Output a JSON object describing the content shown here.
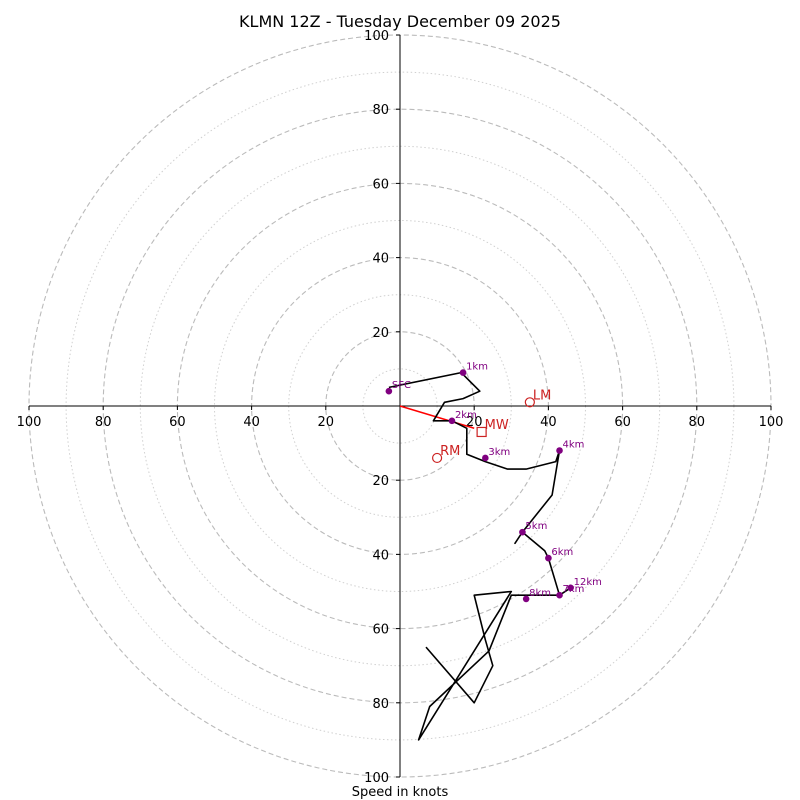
{
  "chart_data": {
    "type": "line",
    "title": "KLMN 12Z - Tuesday December 09 2025",
    "xlabel": "Speed in knots",
    "ylabel": "",
    "xlim": [
      -100,
      100
    ],
    "ylim": [
      -100,
      100
    ],
    "rings": {
      "dashed": [
        20,
        40,
        60,
        80,
        100
      ],
      "dotted": [
        10,
        30,
        50,
        70,
        90
      ]
    },
    "x_tick_labels": [
      "100",
      "80",
      "60",
      "40",
      "20",
      "20",
      "40",
      "60",
      "80",
      "100"
    ],
    "y_tick_labels": [
      "100",
      "80",
      "60",
      "40",
      "20",
      "20",
      "40",
      "60",
      "80",
      "100"
    ],
    "hodograph": {
      "name": "wind profile",
      "x": [
        -3,
        16.5,
        21.5,
        17,
        12,
        9,
        14,
        18,
        18,
        23,
        29,
        34,
        42,
        43,
        41,
        33,
        31,
        33,
        39,
        40,
        43,
        46,
        43,
        30,
        24,
        8,
        5,
        30,
        20,
        23,
        25,
        20,
        7
      ],
      "y": [
        5,
        9,
        4,
        2,
        1,
        -4,
        -4,
        -6,
        -13,
        -15,
        -17,
        -17,
        -15,
        -12,
        -24,
        -34,
        -37,
        -34,
        -39,
        -41,
        -51,
        -49,
        -51,
        -51,
        -66,
        -81,
        -90,
        -50,
        -51,
        -63,
        -70,
        -80,
        -65
      ]
    },
    "height_markers": [
      {
        "label": "SFC",
        "x": -3,
        "y": 4
      },
      {
        "label": "1km",
        "x": 17,
        "y": 9
      },
      {
        "label": "2km",
        "x": 14,
        "y": -4
      },
      {
        "label": "3km",
        "x": 23,
        "y": -14
      },
      {
        "label": "4km",
        "x": 43,
        "y": -12
      },
      {
        "label": "5km",
        "x": 33,
        "y": -34
      },
      {
        "label": "6km",
        "x": 40,
        "y": -41
      },
      {
        "label": "7km",
        "x": 43,
        "y": -51
      },
      {
        "label": "8km",
        "x": 34,
        "y": -52
      },
      {
        "label": "12km",
        "x": 46,
        "y": -49
      }
    ],
    "storm_motion": {
      "RM": {
        "label": "RM",
        "x": 10,
        "y": -14
      },
      "LM": {
        "label": "LM",
        "x": 35,
        "y": 1
      },
      "MW": {
        "label": "MW",
        "x": 22,
        "y": -7
      },
      "vector": {
        "from": [
          0,
          0
        ],
        "to": [
          20,
          -6
        ]
      }
    },
    "colors": {
      "profile": "#000000",
      "markers": "#800080",
      "storm": "#cc2222",
      "vector": "#ff0000",
      "ring": "#bbbbbb",
      "axis": "#000000"
    }
  }
}
